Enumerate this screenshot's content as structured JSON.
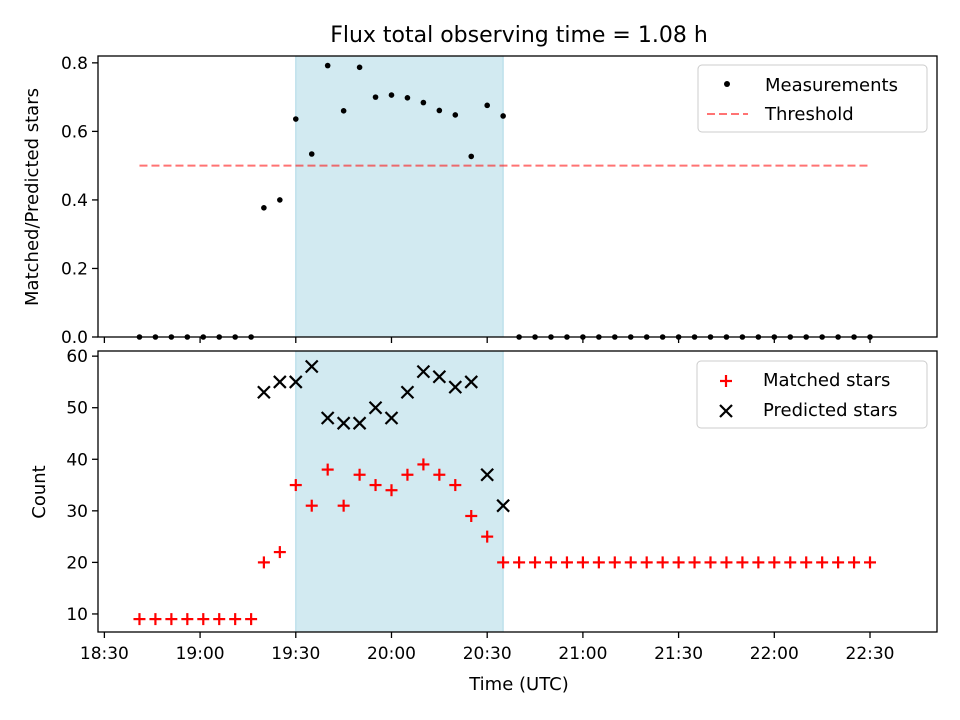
{
  "figure_title": "Flux total observing time = 1.08 h",
  "xlabel": "Time (UTC)",
  "x_tick_labels": [
    "18:30",
    "19:00",
    "19:30",
    "20:00",
    "20:30",
    "21:00",
    "21:30",
    "22:00",
    "22:30"
  ],
  "colors": {
    "span": "#add8e6",
    "measurements": "#000000",
    "threshold": "#ff0000",
    "matched": "#ff0000",
    "predicted": "#000000"
  },
  "chart_data": [
    {
      "type": "scatter",
      "ylabel": "Matched/Predicted stars",
      "ylim": [
        0.0,
        0.82
      ],
      "y_ticks": [
        0.0,
        0.2,
        0.4,
        0.6,
        0.8
      ],
      "y_tick_labels": [
        "0.0",
        "0.2",
        "0.4",
        "0.6",
        "0.8"
      ],
      "xlim": [
        "18:28",
        "22:51"
      ],
      "shaded_span": [
        "19:30",
        "20:35"
      ],
      "legend_position": "top-right",
      "threshold": {
        "name": "Threshold",
        "y": 0.5,
        "x_range": [
          "18:41",
          "22:30"
        ],
        "style": "dashed"
      },
      "series": [
        {
          "name": "Measurements",
          "marker": "dot",
          "x": [
            "18:41",
            "18:46",
            "18:51",
            "18:56",
            "19:01",
            "19:06",
            "19:11",
            "19:16",
            "19:20",
            "19:25",
            "19:30",
            "19:35",
            "19:40",
            "19:45",
            "19:50",
            "19:55",
            "20:00",
            "20:05",
            "20:10",
            "20:15",
            "20:20",
            "20:25",
            "20:30",
            "20:35",
            "20:40",
            "20:45",
            "20:50",
            "20:55",
            "21:00",
            "21:05",
            "21:10",
            "21:15",
            "21:20",
            "21:25",
            "21:30",
            "21:35",
            "21:40",
            "21:45",
            "21:50",
            "21:55",
            "22:00",
            "22:05",
            "22:10",
            "22:15",
            "22:20",
            "22:25",
            "22:30"
          ],
          "y": [
            0,
            0,
            0,
            0,
            0,
            0,
            0,
            0,
            0.377,
            0.4,
            0.636,
            0.534,
            0.792,
            0.66,
            0.787,
            0.7,
            0.706,
            0.698,
            0.684,
            0.661,
            0.648,
            0.527,
            0.676,
            0.645,
            0,
            0,
            0,
            0,
            0,
            0,
            0,
            0,
            0,
            0,
            0,
            0,
            0,
            0,
            0,
            0,
            0,
            0,
            0,
            0,
            0,
            0,
            0
          ]
        }
      ]
    },
    {
      "type": "scatter",
      "ylabel": "Count",
      "ylim": [
        6.5,
        61
      ],
      "y_ticks": [
        10,
        20,
        30,
        40,
        50,
        60
      ],
      "y_tick_labels": [
        "10",
        "20",
        "30",
        "40",
        "50",
        "60"
      ],
      "xlim": [
        "18:28",
        "22:51"
      ],
      "shaded_span": [
        "19:30",
        "20:35"
      ],
      "legend_position": "top-right",
      "series": [
        {
          "name": "Matched stars",
          "marker": "plus",
          "x": [
            "18:41",
            "18:46",
            "18:51",
            "18:56",
            "19:01",
            "19:06",
            "19:11",
            "19:16",
            "19:20",
            "19:25",
            "19:30",
            "19:35",
            "19:40",
            "19:45",
            "19:50",
            "19:55",
            "20:00",
            "20:05",
            "20:10",
            "20:15",
            "20:20",
            "20:25",
            "20:30",
            "20:35",
            "20:40",
            "20:45",
            "20:50",
            "20:55",
            "21:00",
            "21:05",
            "21:10",
            "21:15",
            "21:20",
            "21:25",
            "21:30",
            "21:35",
            "21:40",
            "21:45",
            "21:50",
            "21:55",
            "22:00",
            "22:05",
            "22:10",
            "22:15",
            "22:20",
            "22:25",
            "22:30"
          ],
          "y": [
            9,
            9,
            9,
            9,
            9,
            9,
            9,
            9,
            20,
            22,
            35,
            31,
            38,
            31,
            37,
            35,
            34,
            37,
            39,
            37,
            35,
            29,
            25,
            20,
            20,
            20,
            20,
            20,
            20,
            20,
            20,
            20,
            20,
            20,
            20,
            20,
            20,
            20,
            20,
            20,
            20,
            20,
            20,
            20,
            20,
            20,
            20
          ]
        },
        {
          "name": "Predicted stars",
          "marker": "x",
          "x": [
            "19:20",
            "19:25",
            "19:30",
            "19:35",
            "19:40",
            "19:45",
            "19:50",
            "19:55",
            "20:00",
            "20:05",
            "20:10",
            "20:15",
            "20:20",
            "20:25",
            "20:30",
            "20:35"
          ],
          "y": [
            53,
            55,
            55,
            58,
            48,
            47,
            47,
            50,
            48,
            53,
            57,
            56,
            54,
            55,
            37,
            31
          ]
        }
      ]
    }
  ]
}
